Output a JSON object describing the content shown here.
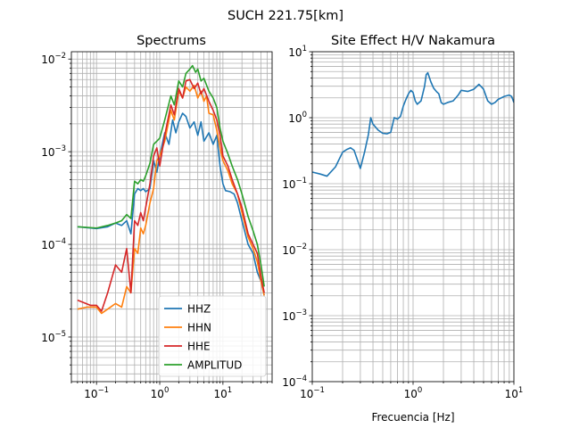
{
  "suptitle": "SUCH 221.75[km]",
  "chart_data": [
    {
      "type": "line",
      "title": "Spectrums",
      "xscale": "log",
      "yscale": "log",
      "xlim": [
        0.04,
        60
      ],
      "ylim": [
        3.3e-06,
        0.012
      ],
      "xticks": [
        {
          "value": 0.1,
          "base": "10",
          "exp": "−1"
        },
        {
          "value": 1,
          "base": "10",
          "exp": "0"
        },
        {
          "value": 10,
          "base": "10",
          "exp": "1"
        }
      ],
      "yticks": [
        {
          "value": 1e-05,
          "base": "10",
          "exp": "−5"
        },
        {
          "value": 0.0001,
          "base": "10",
          "exp": "−4"
        },
        {
          "value": 0.001,
          "base": "10",
          "exp": "−3"
        },
        {
          "value": 0.01,
          "base": "10",
          "exp": "−2"
        }
      ],
      "grid": true,
      "legend_position": "lower-right",
      "series": [
        {
          "name": "HHZ",
          "color": "#1f77b4",
          "points": [
            [
              0.05,
              0.000155
            ],
            [
              0.1,
              0.000148
            ],
            [
              0.15,
              0.000155
            ],
            [
              0.2,
              0.00017
            ],
            [
              0.25,
              0.00016
            ],
            [
              0.3,
              0.00018
            ],
            [
              0.35,
              0.00013
            ],
            [
              0.4,
              0.00035
            ],
            [
              0.45,
              0.0004
            ],
            [
              0.5,
              0.00038
            ],
            [
              0.55,
              0.0004
            ],
            [
              0.6,
              0.00037
            ],
            [
              0.7,
              0.0004
            ],
            [
              0.8,
              0.0008
            ],
            [
              0.9,
              0.0006
            ],
            [
              1.0,
              0.0009
            ],
            [
              1.2,
              0.0016
            ],
            [
              1.4,
              0.0012
            ],
            [
              1.6,
              0.0022
            ],
            [
              1.8,
              0.0016
            ],
            [
              2.0,
              0.0021
            ],
            [
              2.3,
              0.0026
            ],
            [
              2.6,
              0.0024
            ],
            [
              3.0,
              0.0018
            ],
            [
              3.5,
              0.0021
            ],
            [
              4.0,
              0.0015
            ],
            [
              4.5,
              0.0021
            ],
            [
              5.0,
              0.0013
            ],
            [
              6.0,
              0.0016
            ],
            [
              7.0,
              0.0012
            ],
            [
              8.0,
              0.0015
            ],
            [
              9.0,
              0.0007
            ],
            [
              10.0,
              0.00045
            ],
            [
              11.0,
              0.00038
            ],
            [
              13.0,
              0.00037
            ],
            [
              15.0,
              0.00035
            ],
            [
              17.0,
              0.00028
            ],
            [
              20.0,
              0.00018
            ],
            [
              25.0,
              0.0001
            ],
            [
              30.0,
              8e-05
            ],
            [
              35.0,
              5e-05
            ],
            [
              40.0,
              4e-05
            ],
            [
              45.0,
              2.8e-05
            ]
          ]
        },
        {
          "name": "HHN",
          "color": "#ff7f0e",
          "points": [
            [
              0.05,
              2e-05
            ],
            [
              0.07,
              2.1e-05
            ],
            [
              0.1,
              2.1e-05
            ],
            [
              0.12,
              1.8e-05
            ],
            [
              0.15,
              2e-05
            ],
            [
              0.2,
              2.3e-05
            ],
            [
              0.25,
              2.1e-05
            ],
            [
              0.3,
              3.5e-05
            ],
            [
              0.35,
              3e-05
            ],
            [
              0.4,
              9e-05
            ],
            [
              0.45,
              8e-05
            ],
            [
              0.5,
              0.00015
            ],
            [
              0.55,
              0.00013
            ],
            [
              0.6,
              0.00016
            ],
            [
              0.7,
              0.00028
            ],
            [
              0.8,
              0.0004
            ],
            [
              0.9,
              0.0008
            ],
            [
              1.0,
              0.0009
            ],
            [
              1.2,
              0.0013
            ],
            [
              1.5,
              0.0028
            ],
            [
              1.7,
              0.0022
            ],
            [
              2.0,
              0.0045
            ],
            [
              2.3,
              0.0038
            ],
            [
              2.6,
              0.005
            ],
            [
              3.0,
              0.0045
            ],
            [
              3.5,
              0.0052
            ],
            [
              4.0,
              0.0038
            ],
            [
              4.5,
              0.0045
            ],
            [
              5.0,
              0.0035
            ],
            [
              5.5,
              0.004
            ],
            [
              6.0,
              0.0026
            ],
            [
              7.0,
              0.0025
            ],
            [
              8.0,
              0.0017
            ],
            [
              9.0,
              0.0011
            ],
            [
              10.0,
              0.0008
            ],
            [
              12.0,
              0.00062
            ],
            [
              14.0,
              0.00045
            ],
            [
              17.0,
              0.00035
            ],
            [
              20.0,
              0.00022
            ],
            [
              25.0,
              0.00012
            ],
            [
              30.0,
              9e-05
            ],
            [
              35.0,
              6.5e-05
            ],
            [
              40.0,
              4e-05
            ],
            [
              45.0,
              2.8e-05
            ]
          ]
        },
        {
          "name": "HHE",
          "color": "#d62728",
          "points": [
            [
              0.05,
              2.5e-05
            ],
            [
              0.08,
              2.2e-05
            ],
            [
              0.1,
              2.2e-05
            ],
            [
              0.12,
              1.9e-05
            ],
            [
              0.15,
              3e-05
            ],
            [
              0.2,
              6e-05
            ],
            [
              0.25,
              5e-05
            ],
            [
              0.3,
              9e-05
            ],
            [
              0.35,
              3e-05
            ],
            [
              0.4,
              0.00018
            ],
            [
              0.45,
              0.00016
            ],
            [
              0.5,
              0.00022
            ],
            [
              0.55,
              0.00018
            ],
            [
              0.6,
              0.00025
            ],
            [
              0.7,
              0.00045
            ],
            [
              0.8,
              0.0009
            ],
            [
              0.9,
              0.0011
            ],
            [
              1.0,
              0.0007
            ],
            [
              1.2,
              0.0015
            ],
            [
              1.5,
              0.0032
            ],
            [
              1.7,
              0.0025
            ],
            [
              2.0,
              0.0048
            ],
            [
              2.3,
              0.0038
            ],
            [
              2.6,
              0.0058
            ],
            [
              3.0,
              0.006
            ],
            [
              3.5,
              0.0048
            ],
            [
              4.0,
              0.0055
            ],
            [
              4.5,
              0.0042
            ],
            [
              5.0,
              0.0048
            ],
            [
              6.0,
              0.0035
            ],
            [
              7.0,
              0.0028
            ],
            [
              8.0,
              0.0022
            ],
            [
              9.0,
              0.0015
            ],
            [
              10.0,
              0.0009
            ],
            [
              12.0,
              0.0007
            ],
            [
              14.0,
              0.0005
            ],
            [
              17.0,
              0.00035
            ],
            [
              20.0,
              0.00025
            ],
            [
              25.0,
              0.00013
            ],
            [
              30.0,
              0.0001
            ],
            [
              35.0,
              8e-05
            ],
            [
              40.0,
              4.5e-05
            ],
            [
              45.0,
              3e-05
            ]
          ]
        },
        {
          "name": "AMPLITUD",
          "color": "#2ca02c",
          "points": [
            [
              0.05,
              0.000155
            ],
            [
              0.1,
              0.00015
            ],
            [
              0.15,
              0.00016
            ],
            [
              0.2,
              0.00017
            ],
            [
              0.25,
              0.00018
            ],
            [
              0.3,
              0.00021
            ],
            [
              0.35,
              0.00019
            ],
            [
              0.4,
              0.00048
            ],
            [
              0.45,
              0.00045
            ],
            [
              0.5,
              0.0005
            ],
            [
              0.55,
              0.00048
            ],
            [
              0.6,
              0.00055
            ],
            [
              0.7,
              0.00075
            ],
            [
              0.8,
              0.0012
            ],
            [
              0.9,
              0.0013
            ],
            [
              1.0,
              0.0014
            ],
            [
              1.2,
              0.0022
            ],
            [
              1.5,
              0.004
            ],
            [
              1.7,
              0.0032
            ],
            [
              2.0,
              0.0058
            ],
            [
              2.3,
              0.005
            ],
            [
              2.6,
              0.007
            ],
            [
              3.0,
              0.0078
            ],
            [
              3.3,
              0.0085
            ],
            [
              3.7,
              0.0072
            ],
            [
              4.0,
              0.0078
            ],
            [
              4.5,
              0.0058
            ],
            [
              5.0,
              0.0062
            ],
            [
              6.0,
              0.0045
            ],
            [
              7.0,
              0.0038
            ],
            [
              8.0,
              0.003
            ],
            [
              9.0,
              0.0018
            ],
            [
              10.0,
              0.0013
            ],
            [
              12.0,
              0.00095
            ],
            [
              14.0,
              0.0007
            ],
            [
              17.0,
              0.0005
            ],
            [
              20.0,
              0.00035
            ],
            [
              25.0,
              0.0002
            ],
            [
              30.0,
              0.00014
            ],
            [
              35.0,
              0.0001
            ],
            [
              40.0,
              6e-05
            ],
            [
              45.0,
              3.5e-05
            ]
          ]
        }
      ]
    },
    {
      "type": "line",
      "title": "Site Effect H/V Nakamura",
      "xlabel": "Frecuencia [Hz]",
      "xscale": "log",
      "yscale": "log",
      "xlim": [
        0.1,
        10
      ],
      "ylim": [
        0.0001,
        10
      ],
      "xticks": [
        {
          "value": 0.1,
          "base": "10",
          "exp": "−1"
        },
        {
          "value": 1,
          "base": "10",
          "exp": "0"
        },
        {
          "value": 10,
          "base": "10",
          "exp": "1"
        }
      ],
      "yticks": [
        {
          "value": 0.0001,
          "base": "10",
          "exp": "−4"
        },
        {
          "value": 0.001,
          "base": "10",
          "exp": "−3"
        },
        {
          "value": 0.01,
          "base": "10",
          "exp": "−2"
        },
        {
          "value": 0.1,
          "base": "10",
          "exp": "−1"
        },
        {
          "value": 1,
          "base": "10",
          "exp": "0"
        },
        {
          "value": 10,
          "base": "10",
          "exp": "1"
        }
      ],
      "grid": true,
      "series": [
        {
          "color": "#1f77b4",
          "points": [
            [
              0.1,
              0.15
            ],
            [
              0.12,
              0.14
            ],
            [
              0.14,
              0.13
            ],
            [
              0.17,
              0.18
            ],
            [
              0.2,
              0.3
            ],
            [
              0.22,
              0.33
            ],
            [
              0.24,
              0.35
            ],
            [
              0.26,
              0.32
            ],
            [
              0.3,
              0.17
            ],
            [
              0.33,
              0.3
            ],
            [
              0.36,
              0.55
            ],
            [
              0.38,
              1.0
            ],
            [
              0.4,
              0.8
            ],
            [
              0.45,
              0.65
            ],
            [
              0.5,
              0.58
            ],
            [
              0.55,
              0.57
            ],
            [
              0.6,
              0.6
            ],
            [
              0.65,
              1.0
            ],
            [
              0.7,
              0.95
            ],
            [
              0.75,
              1.05
            ],
            [
              0.8,
              1.5
            ],
            [
              0.85,
              1.9
            ],
            [
              0.9,
              2.3
            ],
            [
              0.95,
              2.6
            ],
            [
              1.0,
              2.4
            ],
            [
              1.05,
              1.8
            ],
            [
              1.1,
              1.6
            ],
            [
              1.2,
              1.8
            ],
            [
              1.3,
              3.0
            ],
            [
              1.35,
              4.5
            ],
            [
              1.4,
              4.8
            ],
            [
              1.5,
              3.5
            ],
            [
              1.6,
              2.8
            ],
            [
              1.7,
              2.5
            ],
            [
              1.8,
              2.3
            ],
            [
              1.9,
              1.7
            ],
            [
              2.0,
              1.6
            ],
            [
              2.2,
              1.7
            ],
            [
              2.5,
              1.8
            ],
            [
              2.8,
              2.2
            ],
            [
              3.0,
              2.6
            ],
            [
              3.5,
              2.5
            ],
            [
              4.0,
              2.7
            ],
            [
              4.5,
              3.2
            ],
            [
              4.8,
              2.9
            ],
            [
              5.0,
              2.7
            ],
            [
              5.5,
              1.8
            ],
            [
              6.0,
              1.6
            ],
            [
              6.5,
              1.7
            ],
            [
              7.0,
              1.9
            ],
            [
              8.0,
              2.1
            ],
            [
              9.0,
              2.2
            ],
            [
              9.5,
              2.1
            ],
            [
              10.0,
              1.7
            ]
          ]
        }
      ]
    }
  ]
}
